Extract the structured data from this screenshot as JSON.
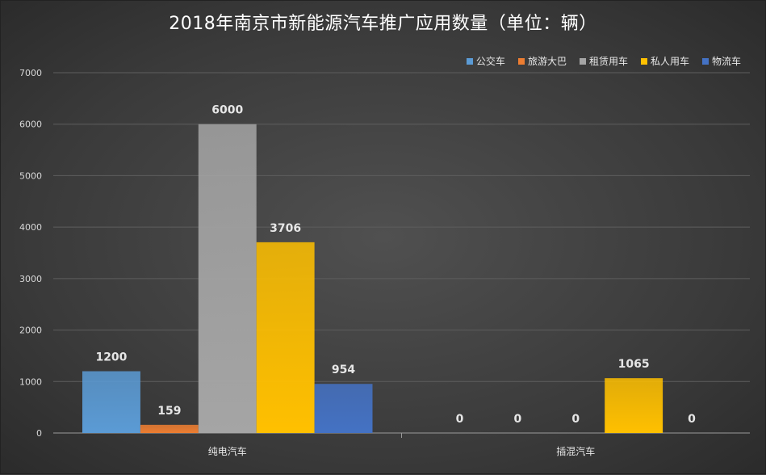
{
  "chart_data": {
    "type": "bar",
    "title": "2018年南京市新能源汽车推广应用数量（单位：辆）",
    "categories": [
      "纯电汽车",
      "插混汽车"
    ],
    "series": [
      {
        "name": "公交车",
        "values": [
          1200,
          0
        ],
        "color": "#5b9bd5"
      },
      {
        "name": "旅游大巴",
        "values": [
          159,
          0
        ],
        "color": "#ed7d31"
      },
      {
        "name": "租赁用车",
        "values": [
          6000,
          0
        ],
        "color": "#a5a5a5"
      },
      {
        "name": "私人用车",
        "values": [
          3706,
          1065
        ],
        "color": "#ffc000"
      },
      {
        "name": "物流车",
        "values": [
          954,
          0
        ],
        "color": "#4472c4"
      }
    ],
    "yticks": [
      0,
      1000,
      2000,
      3000,
      4000,
      5000,
      6000,
      7000
    ],
    "ylim": [
      0,
      7000
    ],
    "legend_position": "top-right",
    "grid": true
  }
}
